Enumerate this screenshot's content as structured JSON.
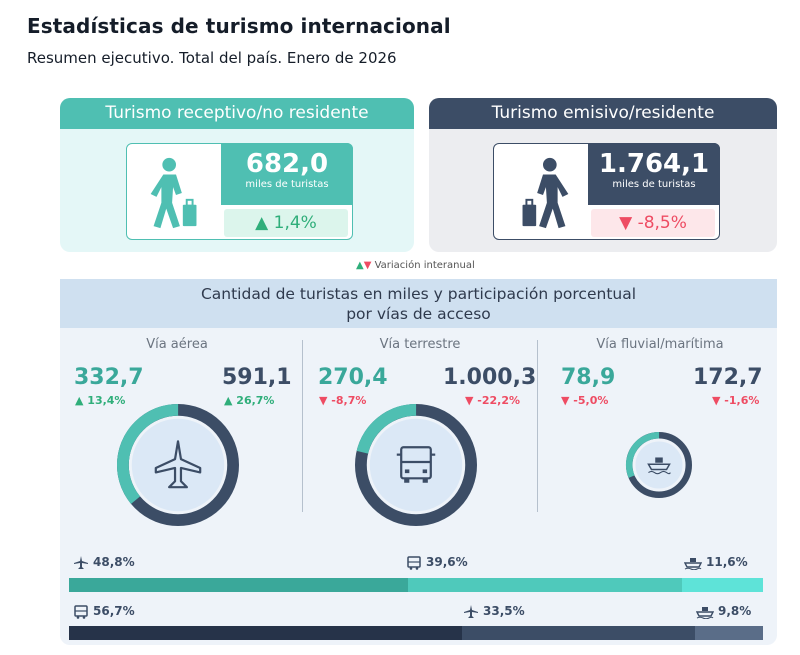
{
  "header": {
    "title": "Estadísticas de turismo internacional",
    "subtitle": "Resumen ejecutivo. Total del país. Enero de 2026"
  },
  "cards": {
    "inbound": {
      "title": "Turismo receptivo/no residente",
      "value": "682,0",
      "unit": "miles de turistas",
      "variation": "1,4%",
      "direction": "up"
    },
    "outbound": {
      "title": "Turismo emisivo/residente",
      "value": "1.764,1",
      "unit": "miles de turistas",
      "variation": "-8,5%",
      "direction": "down"
    }
  },
  "legend": {
    "label": "Variación interanual"
  },
  "panel": {
    "title_line1": "Cantidad de turistas en miles y participación porcentual",
    "title_line2": "por vías de acceso"
  },
  "colors": {
    "teal": "#4fbfb2",
    "navy": "#3c4d66",
    "green": "#2fae7a",
    "red": "#ee4c63"
  },
  "chart_data": {
    "type": "bar",
    "title": "Cantidad de turistas en miles y participación porcentual por vías de acceso",
    "access_modes": [
      {
        "label": "Vía aérea",
        "icon": "plane-icon",
        "receptivo": 332.7,
        "receptivo_label": "332,7",
        "receptivo_var": "13,4%",
        "receptivo_dir": "up",
        "emisivo": 591.1,
        "emisivo_label": "591,1",
        "emisivo_var": "26,7%",
        "emisivo_dir": "up"
      },
      {
        "label": "Vía terrestre",
        "icon": "truck-icon",
        "receptivo": 270.4,
        "receptivo_label": "270,4",
        "receptivo_var": "-8,7%",
        "receptivo_dir": "down",
        "emisivo": 1000.3,
        "emisivo_label": "1.000,3",
        "emisivo_var": "-22,2%",
        "emisivo_dir": "down"
      },
      {
        "label": "Vía fluvial/marítima",
        "icon": "ship-icon",
        "receptivo": 78.9,
        "receptivo_label": "78,9",
        "receptivo_var": "-5,0%",
        "receptivo_dir": "down",
        "emisivo": 172.7,
        "emisivo_label": "172,7",
        "emisivo_var": "-1,6%",
        "emisivo_dir": "down"
      }
    ],
    "share_receptivo": [
      {
        "mode": "aérea",
        "icon": "plane-icon",
        "pct": 48.8,
        "label": "48,8%",
        "color": "#3aa89a"
      },
      {
        "mode": "terrestre",
        "icon": "truck-icon",
        "pct": 39.6,
        "label": "39,6%",
        "color": "#4fc9bb"
      },
      {
        "mode": "fluvial/marítima",
        "icon": "ship-icon",
        "pct": 11.6,
        "label": "11,6%",
        "color": "#5ee3d8"
      }
    ],
    "share_emisivo": [
      {
        "mode": "terrestre",
        "icon": "truck-icon",
        "pct": 56.7,
        "label": "56,7%",
        "color": "#263349"
      },
      {
        "mode": "aérea",
        "icon": "plane-icon",
        "pct": 33.5,
        "label": "33,5%",
        "color": "#3c4d66"
      },
      {
        "mode": "fluvial/marítima",
        "icon": "ship-icon",
        "pct": 9.8,
        "label": "9,8%",
        "color": "#5a6d88"
      }
    ]
  }
}
